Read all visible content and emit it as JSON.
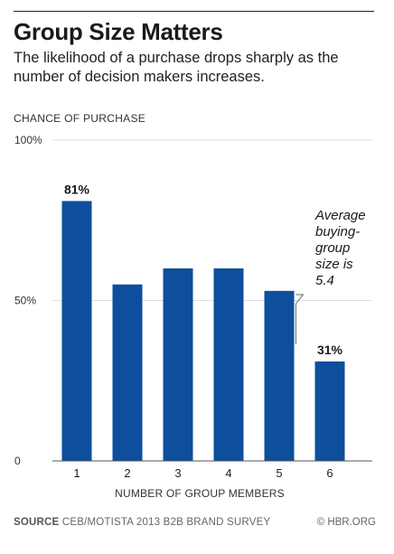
{
  "header": {
    "title": "Group Size Matters",
    "subtitle": "The likelihood of a purchase drops sharply as the number of decision makers increases."
  },
  "chart_data": {
    "type": "bar",
    "title": "Group Size Matters",
    "subtitle": "The likelihood of a purchase drops sharply as the number of decision makers increases.",
    "ylabel": "CHANCE OF PURCHASE",
    "xlabel": "NUMBER OF GROUP MEMBERS",
    "categories": [
      "1",
      "2",
      "3",
      "4",
      "5",
      "6"
    ],
    "values": [
      81,
      55,
      60,
      60,
      53,
      31
    ],
    "data_labels": [
      "81%",
      "",
      "",
      "",
      "",
      "31%"
    ],
    "ylim": [
      0,
      100
    ],
    "yticks": [
      {
        "value": 0,
        "label": "0"
      },
      {
        "value": 50,
        "label": "50%"
      },
      {
        "value": 100,
        "label": "100%"
      }
    ],
    "grid": true,
    "bar_color": "#0d4f9c",
    "annotation": {
      "lines": [
        "Average",
        "buying-",
        "group",
        "size is",
        "5.4"
      ],
      "x_value": 5.4
    }
  },
  "footer": {
    "source_label": "SOURCE",
    "source_text": "CEB/MOTISTA 2013 B2B BRAND SURVEY",
    "credit": "© HBR.ORG"
  }
}
